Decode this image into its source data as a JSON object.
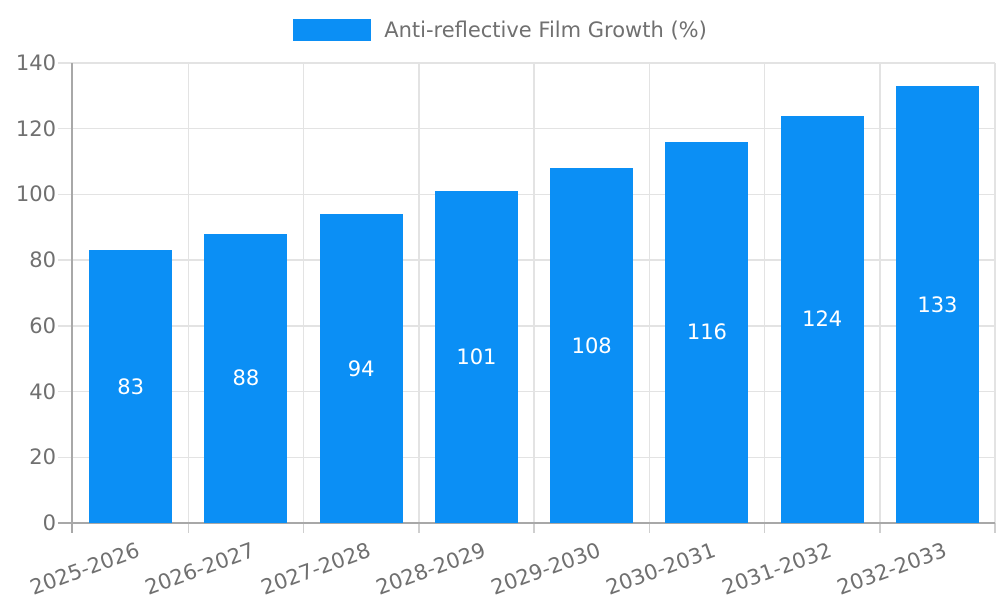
{
  "legend": {
    "label": "Anti-reflective Film Growth (%)"
  },
  "chart_data": {
    "type": "bar",
    "title": "",
    "categories": [
      "2025-2026",
      "2026-2027",
      "2027-2028",
      "2028-2029",
      "2029-2030",
      "2030-2031",
      "2031-2032",
      "2032-2033"
    ],
    "series": [
      {
        "name": "Anti-reflective Film Growth (%)",
        "values": [
          83,
          88,
          94,
          101,
          108,
          116,
          124,
          133
        ]
      }
    ],
    "value_labels": [
      83,
      88,
      94,
      101,
      108,
      116,
      124,
      133
    ],
    "value_label_position": "inside-center",
    "yticks": [
      0,
      20,
      40,
      60,
      80,
      100,
      120,
      140
    ],
    "ylim": [
      0,
      140
    ],
    "xlabel": "",
    "ylabel": "",
    "grid": true,
    "legend_position": "top-center"
  },
  "colors": {
    "bar": "#0b8ff5",
    "grid": "#e3e3e3",
    "axis": "#a8a8a8",
    "tick": "#cfcfcf",
    "text": "#707070",
    "value_label": "#ffffff",
    "background": "#ffffff"
  }
}
